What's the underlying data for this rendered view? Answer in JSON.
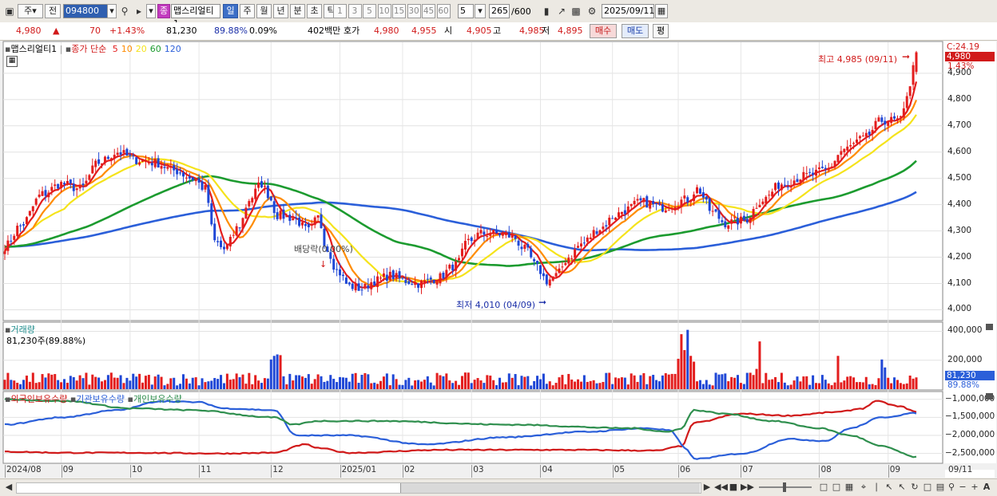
{
  "toolbar": {
    "type_select": "주",
    "prev_label": "전",
    "stock_code": "094800",
    "type_badge": "종",
    "stock_name": "맵스리얼티1",
    "period_labels": [
      "일",
      "주",
      "월",
      "년",
      "분",
      "초",
      "틱"
    ],
    "period_selected": "일",
    "interval_labels": [
      "1",
      "3",
      "5",
      "10",
      "15",
      "30",
      "45",
      "60"
    ],
    "interval_value": "5",
    "count_value": "265",
    "count_total": "/600",
    "date_value": "2025/09/11"
  },
  "quote": {
    "price": "4,980",
    "change_arrow": "▲",
    "change": "70",
    "change_pct": "+1.43%",
    "volume": "81,230",
    "volume_ratio": "89.88%",
    "turnover": "0.09%",
    "amount": "402백만",
    "bid_label": "호가",
    "ask_price": "4,980",
    "bid_price": "4,955",
    "open_label": "시",
    "open": "4,905",
    "high_label": "고",
    "high": "4,985",
    "low_label": "저",
    "low": "4,895",
    "buy_label": "매수",
    "sell_label": "매도",
    "eval_label": "평"
  },
  "price_panel": {
    "name_label": "맵스리얼티1",
    "ma_label": "종가 단순",
    "ma_periods": [
      "5",
      "10",
      "20",
      "60",
      "120"
    ],
    "ma_colors": [
      "#e31d1d",
      "#ff8c00",
      "#f5e31b",
      "#1c9b2f",
      "#2b5fd9"
    ],
    "hi_annotation": "최고 4,985 (09/11)",
    "lo_annotation": "최저 4,010 (04/09)",
    "ex_annotation": "배당락(0.00%)",
    "scale_top": "C:24.19",
    "price_tag": "4,980",
    "pct_tag": "1.43%"
  },
  "volume_panel": {
    "title": "거래량",
    "value_label": "81,230주(89.88%)",
    "tag_value": "81,230",
    "tag_pct": "89.88%"
  },
  "holding_panel": {
    "series": [
      "외국인보유수량",
      "기관보유수량",
      "개인보유수량"
    ],
    "colors": [
      "#d11a1a",
      "#2b5fd9",
      "#2f8f4e"
    ]
  },
  "chart_data": [
    {
      "type": "candlestick",
      "title": "맵스리얼티1 일봉",
      "y_ticks": [
        4000,
        4100,
        4200,
        4300,
        4400,
        4500,
        4600,
        4700,
        4800,
        4900
      ],
      "ylim": [
        3965,
        5015
      ],
      "x_month_labels": [
        "2024/08",
        "09",
        "10",
        "11",
        "12",
        "2025/01",
        "02",
        "03",
        "04",
        "05",
        "06",
        "07",
        "08",
        "09"
      ],
      "x_last_label": "09/11",
      "month_index": [
        0,
        18,
        40,
        62,
        85,
        107,
        127,
        149,
        171,
        194,
        215,
        235,
        260,
        282
      ],
      "n_days": 292,
      "close_anchors": [
        [
          0,
          4240
        ],
        [
          5,
          4320
        ],
        [
          12,
          4440
        ],
        [
          18,
          4480
        ],
        [
          24,
          4460
        ],
        [
          30,
          4560
        ],
        [
          36,
          4600
        ],
        [
          42,
          4570
        ],
        [
          48,
          4560
        ],
        [
          54,
          4530
        ],
        [
          60,
          4500
        ],
        [
          64,
          4460
        ],
        [
          67,
          4260
        ],
        [
          70,
          4230
        ],
        [
          75,
          4320
        ],
        [
          78,
          4420
        ],
        [
          82,
          4480
        ],
        [
          84,
          4440
        ],
        [
          87,
          4360
        ],
        [
          92,
          4350
        ],
        [
          97,
          4300
        ],
        [
          100,
          4350
        ],
        [
          103,
          4230
        ],
        [
          106,
          4150
        ],
        [
          110,
          4090
        ],
        [
          114,
          4080
        ],
        [
          118,
          4110
        ],
        [
          123,
          4130
        ],
        [
          128,
          4110
        ],
        [
          132,
          4100
        ],
        [
          138,
          4120
        ],
        [
          144,
          4170
        ],
        [
          148,
          4260
        ],
        [
          152,
          4290
        ],
        [
          157,
          4290
        ],
        [
          162,
          4280
        ],
        [
          166,
          4230
        ],
        [
          170,
          4160
        ],
        [
          173,
          4110
        ],
        [
          176,
          4130
        ],
        [
          180,
          4200
        ],
        [
          184,
          4250
        ],
        [
          190,
          4310
        ],
        [
          195,
          4360
        ],
        [
          198,
          4380
        ],
        [
          203,
          4410
        ],
        [
          210,
          4390
        ],
        [
          218,
          4420
        ],
        [
          221,
          4460
        ],
        [
          226,
          4370
        ],
        [
          230,
          4330
        ],
        [
          236,
          4340
        ],
        [
          242,
          4420
        ],
        [
          248,
          4480
        ],
        [
          256,
          4510
        ],
        [
          262,
          4530
        ],
        [
          268,
          4610
        ],
        [
          274,
          4650
        ],
        [
          280,
          4720
        ],
        [
          286,
          4720
        ],
        [
          289,
          4860
        ],
        [
          291,
          4980
        ]
      ],
      "last": {
        "date": "2025/09/11",
        "open": 4905,
        "high": 4985,
        "low": 4895,
        "close": 4980,
        "change": 70,
        "change_pct": 1.43
      },
      "high_point": {
        "value": 4985,
        "date": "09/11"
      },
      "low_point": {
        "value": 4010,
        "date": "04/09"
      },
      "ma_end_values": {
        "ma5": 4870,
        "ma10": 4800,
        "ma20": 4740,
        "ma60": 4560,
        "ma120": 4420
      }
    },
    {
      "type": "bar",
      "title": "거래량",
      "y_ticks": [
        200000,
        400000
      ],
      "ylim": [
        0,
        430000
      ],
      "last_value": 81230,
      "spikes": [
        [
          85,
          205000
        ],
        [
          86,
          230000
        ],
        [
          87,
          240000
        ],
        [
          88,
          235000
        ],
        [
          215,
          210000
        ],
        [
          216,
          380000
        ],
        [
          217,
          270000
        ],
        [
          218,
          410000
        ],
        [
          219,
          230000
        ],
        [
          220,
          190000
        ],
        [
          240,
          140000
        ],
        [
          241,
          330000
        ],
        [
          266,
          230000
        ],
        [
          280,
          205000
        ],
        [
          281,
          150000
        ]
      ]
    },
    {
      "type": "line",
      "title": "보유수량",
      "y_ticks": [
        -1000000,
        -1500000,
        -2000000,
        -2500000
      ],
      "ylim": [
        -2750000,
        -850000
      ],
      "series": [
        {
          "name": "외국인보유수량",
          "anchors": [
            [
              0,
              -2450000
            ],
            [
              20,
              -2480000
            ],
            [
              40,
              -2480000
            ],
            [
              70,
              -2500000
            ],
            [
              86,
              -2480000
            ],
            [
              96,
              -2250000
            ],
            [
              100,
              -2350000
            ],
            [
              110,
              -2480000
            ],
            [
              140,
              -2400000
            ],
            [
              180,
              -2400000
            ],
            [
              208,
              -2420000
            ],
            [
              216,
              -2300000
            ],
            [
              220,
              -1650000
            ],
            [
              235,
              -1400000
            ],
            [
              250,
              -1450000
            ],
            [
              266,
              -1350000
            ],
            [
              274,
              -1250000
            ],
            [
              278,
              -1050000
            ],
            [
              286,
              -1200000
            ],
            [
              291,
              -1350000
            ]
          ]
        },
        {
          "name": "기관보유수량",
          "anchors": [
            [
              0,
              -1700000
            ],
            [
              18,
              -1500000
            ],
            [
              36,
              -1300000
            ],
            [
              50,
              -1050000
            ],
            [
              62,
              -1080000
            ],
            [
              70,
              -1250000
            ],
            [
              86,
              -1300000
            ],
            [
              93,
              -2000000
            ],
            [
              110,
              -2000000
            ],
            [
              134,
              -2250000
            ],
            [
              160,
              -2050000
            ],
            [
              185,
              -1900000
            ],
            [
              205,
              -1800000
            ],
            [
              212,
              -1850000
            ],
            [
              218,
              -2400000
            ],
            [
              220,
              -2650000
            ],
            [
              236,
              -2500000
            ],
            [
              250,
              -2100000
            ],
            [
              262,
              -2150000
            ],
            [
              270,
              -1800000
            ],
            [
              280,
              -1500000
            ],
            [
              291,
              -1380000
            ]
          ]
        },
        {
          "name": "개인보유수량",
          "anchors": [
            [
              0,
              -1000000
            ],
            [
              20,
              -1050000
            ],
            [
              40,
              -1250000
            ],
            [
              60,
              -1300000
            ],
            [
              86,
              -1500000
            ],
            [
              92,
              -1700000
            ],
            [
              100,
              -1600000
            ],
            [
              120,
              -1600000
            ],
            [
              160,
              -1700000
            ],
            [
              200,
              -1800000
            ],
            [
              212,
              -1900000
            ],
            [
              216,
              -1800000
            ],
            [
              220,
              -1300000
            ],
            [
              230,
              -1400000
            ],
            [
              245,
              -1600000
            ],
            [
              260,
              -1800000
            ],
            [
              270,
              -2000000
            ],
            [
              280,
              -2300000
            ],
            [
              291,
              -2600000
            ]
          ]
        }
      ]
    }
  ]
}
